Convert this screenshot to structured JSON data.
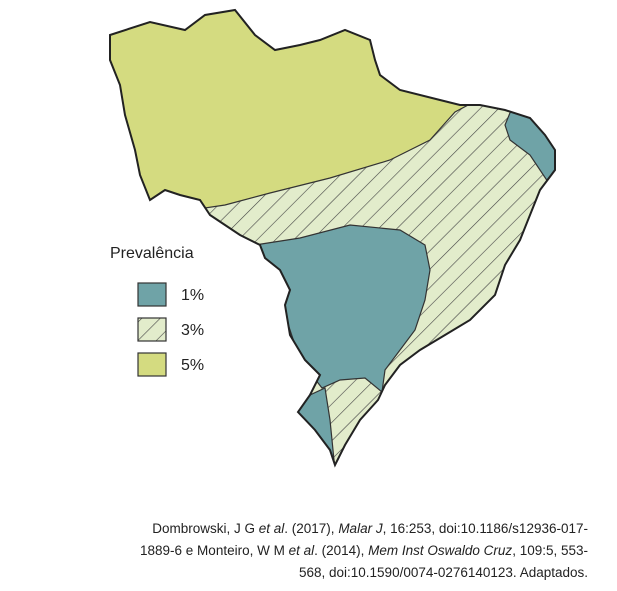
{
  "legend": {
    "title": "Prevalência",
    "items": [
      {
        "label": "1%",
        "color": "#6fa3a7",
        "pattern": "solid"
      },
      {
        "label": "3%",
        "color": "#e2eccb",
        "pattern": "hatch"
      },
      {
        "label": "5%",
        "color": "#d4db80",
        "pattern": "solid"
      }
    ]
  },
  "citation": {
    "lines": [
      [
        {
          "text": "Dombrowski, J G ",
          "italic": false
        },
        {
          "text": "et al",
          "italic": true
        },
        {
          "text": ". (2017), ",
          "italic": false
        },
        {
          "text": "Malar J",
          "italic": true
        },
        {
          "text": ", 16:253, doi:10.1186/s12936-017-",
          "italic": false
        }
      ],
      [
        {
          "text": "1889-6 e Monteiro, W M ",
          "italic": false
        },
        {
          "text": "et al",
          "italic": true
        },
        {
          "text": ". (2014), ",
          "italic": false
        },
        {
          "text": "Mem Inst Oswaldo Cruz",
          "italic": true
        },
        {
          "text": ", 109:5, 553-",
          "italic": false
        }
      ],
      [
        {
          "text": "568, doi:10.1590/0074-0276140123. Adaptados.",
          "italic": false
        }
      ]
    ]
  }
}
